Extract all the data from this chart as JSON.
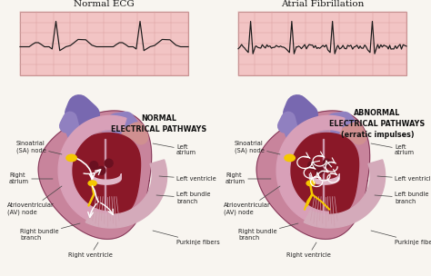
{
  "title_left": "Normal ECG",
  "title_right": "Atrial Fibrillation",
  "bg_color": "#f8f5f0",
  "ecg_bg_color": "#f2c4c4",
  "ecg_grid_color": "#dda0a0",
  "ecg_line_color": "#1a1a1a",
  "label_left_pathway": "NORMAL\nELECTRICAL PATHWAYS",
  "label_right_pathway": "ABNORMAL\nELECTRICAL PATHWAYS\n(erratic impulses)",
  "heart_outer_color": "#c4788a",
  "heart_mid_color": "#a85070",
  "heart_inner_color": "#7a1830",
  "heart_septum_color": "#d4a0b0",
  "heart_right_atrium_color": "#c080a0",
  "heart_left_ventricle_color": "#d4b0b8",
  "vessel_blue_color": "#8878b8",
  "sa_node_color": "#f5c800",
  "av_node_color": "#f5c800",
  "pathway_white": "#ffffff",
  "pathway_yellow": "#f5c800",
  "annotation_color": "#222222",
  "annotation_fontsize": 4.8,
  "title_fontsize": 7.5
}
